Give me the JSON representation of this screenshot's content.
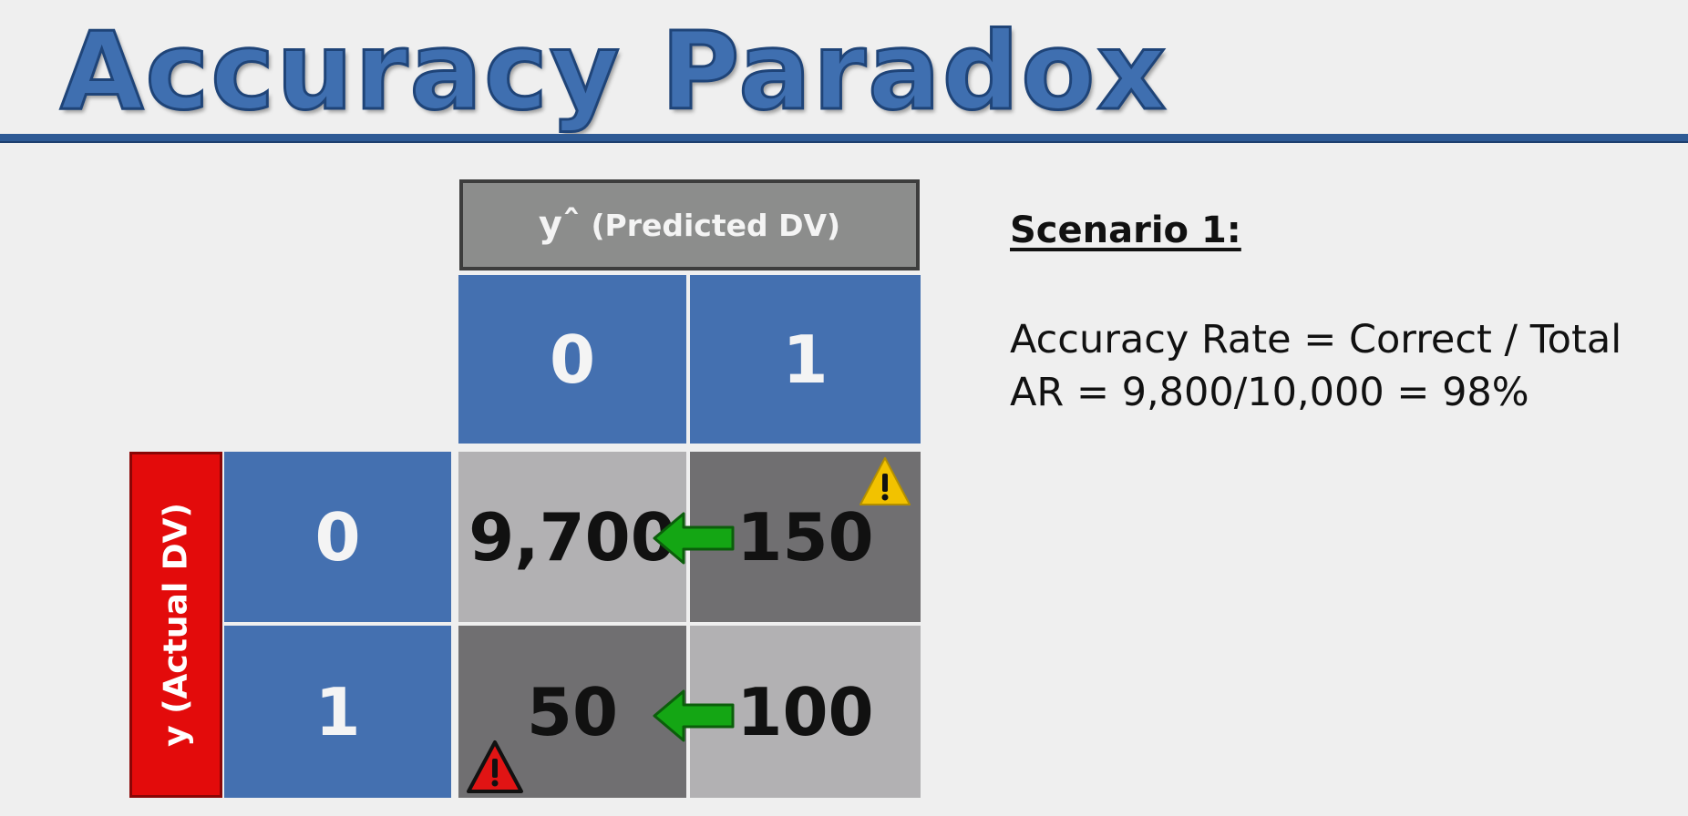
{
  "slide": {
    "title": "Accuracy Paradox",
    "bottom_caption_partial": ""
  },
  "matrix": {
    "predicted_header": {
      "symbol": "yˆ",
      "label": "(Predicted DV)"
    },
    "actual_header": {
      "label": "y (Actual DV)"
    },
    "predicted_classes": [
      "0",
      "1"
    ],
    "actual_classes": [
      "0",
      "1"
    ],
    "cells": {
      "r0c0": "9,700",
      "r0c1": "150",
      "r1c0": "50",
      "r1c1": "100"
    }
  },
  "scenario": {
    "title": "Scenario 1:",
    "line1": "Accuracy Rate = Correct / Total",
    "line2": "AR = 9,800/10,000 = 98%"
  },
  "icons": {
    "arrow": "left-arrow-icon",
    "warning_yellow": "warning-icon",
    "warning_red": "warning-icon"
  },
  "colors": {
    "title_blue": "#3f6fb0",
    "cell_blue": "#4470b0",
    "actual_red": "#e30b0b",
    "arrow_green": "#14a614",
    "warning_yellow": "#f2c200",
    "warning_red": "#e11414"
  }
}
